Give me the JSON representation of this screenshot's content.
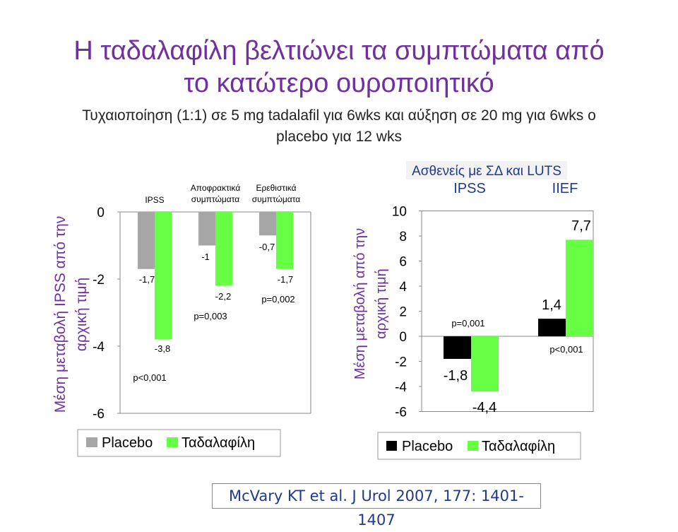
{
  "header": {
    "title_line1": "Η ταδαλαφίλη βελτιώνει τα συμπτώματα από",
    "title_line2": "το κατώτερο ουροποιητικό",
    "subtitle_line1": "Τυχαιοποίηση (1:1) σε 5 mg tadalafil για 6wks και αύξηση σε 20 mg για 6wks ο",
    "subtitle_line2": "placebo για 12 wks"
  },
  "colors": {
    "title": "#7030a0",
    "placebo_left": "#a6a6a6",
    "tadalafil": "#66ff44",
    "placebo_right": "#000000"
  },
  "chart_data": [
    {
      "type": "bar",
      "categories": [
        "IPSS",
        "Αποφρακτικά συμπτώματα",
        "Ερεθιστικά συμπτώματα"
      ],
      "category_lines": [
        [
          "IPSS"
        ],
        [
          "Αποφρακτικά",
          "συμπτώματα"
        ],
        [
          "Ερεθιστικά",
          "συμπτώματα"
        ]
      ],
      "series": [
        {
          "name": "Placebo",
          "values": [
            -1.7,
            -1,
            -0.7
          ],
          "labels": [
            "-1,7",
            "-1",
            "-0,7"
          ],
          "color": "#a6a6a6"
        },
        {
          "name": "Ταδαλαφίλη",
          "values": [
            -3.8,
            -2.2,
            -1.7
          ],
          "labels": [
            "-3,8",
            "-2,2",
            "-1,7"
          ],
          "color": "#66ff44"
        }
      ],
      "p_values": [
        "p<0,001",
        "p=0,003",
        "p=0,002"
      ],
      "ylabel_lines": [
        "Μέση μεταβολή IPSS από την",
        "αρχική τιμή"
      ],
      "yticks": [
        0,
        -2,
        -4,
        -6
      ],
      "ylim": [
        -6,
        0
      ],
      "legend": [
        "Placebo",
        "Ταδαλαφίλη"
      ],
      "legend_position": "bottom"
    },
    {
      "type": "bar",
      "header": "Ασθενείς με ΣΔ και LUTS",
      "categories": [
        "IPSS",
        "IIEF"
      ],
      "series": [
        {
          "name": "Placebo",
          "values": [
            -1.8,
            1.4
          ],
          "labels": [
            "-1,8",
            "1,4"
          ],
          "color": "#000000"
        },
        {
          "name": "Ταδαλαφίλη",
          "values": [
            -4.4,
            7.7
          ],
          "labels": [
            "-4,4",
            "7,7"
          ],
          "color": "#66ff44"
        }
      ],
      "p_values": [
        "p=0,001",
        "p<0,001"
      ],
      "ylabel_lines": [
        "Μέση μεταβολή  από την",
        "αρχική τιμή"
      ],
      "yticks": [
        10,
        8,
        6,
        4,
        2,
        0,
        -2,
        -4,
        -6
      ],
      "ylim": [
        -6,
        10
      ],
      "legend": [
        "Placebo",
        "Ταδαλαφίλη"
      ],
      "legend_position": "bottom"
    }
  ],
  "citation": "McVary KT et al. J Urol 2007, 177: 1401-1407"
}
